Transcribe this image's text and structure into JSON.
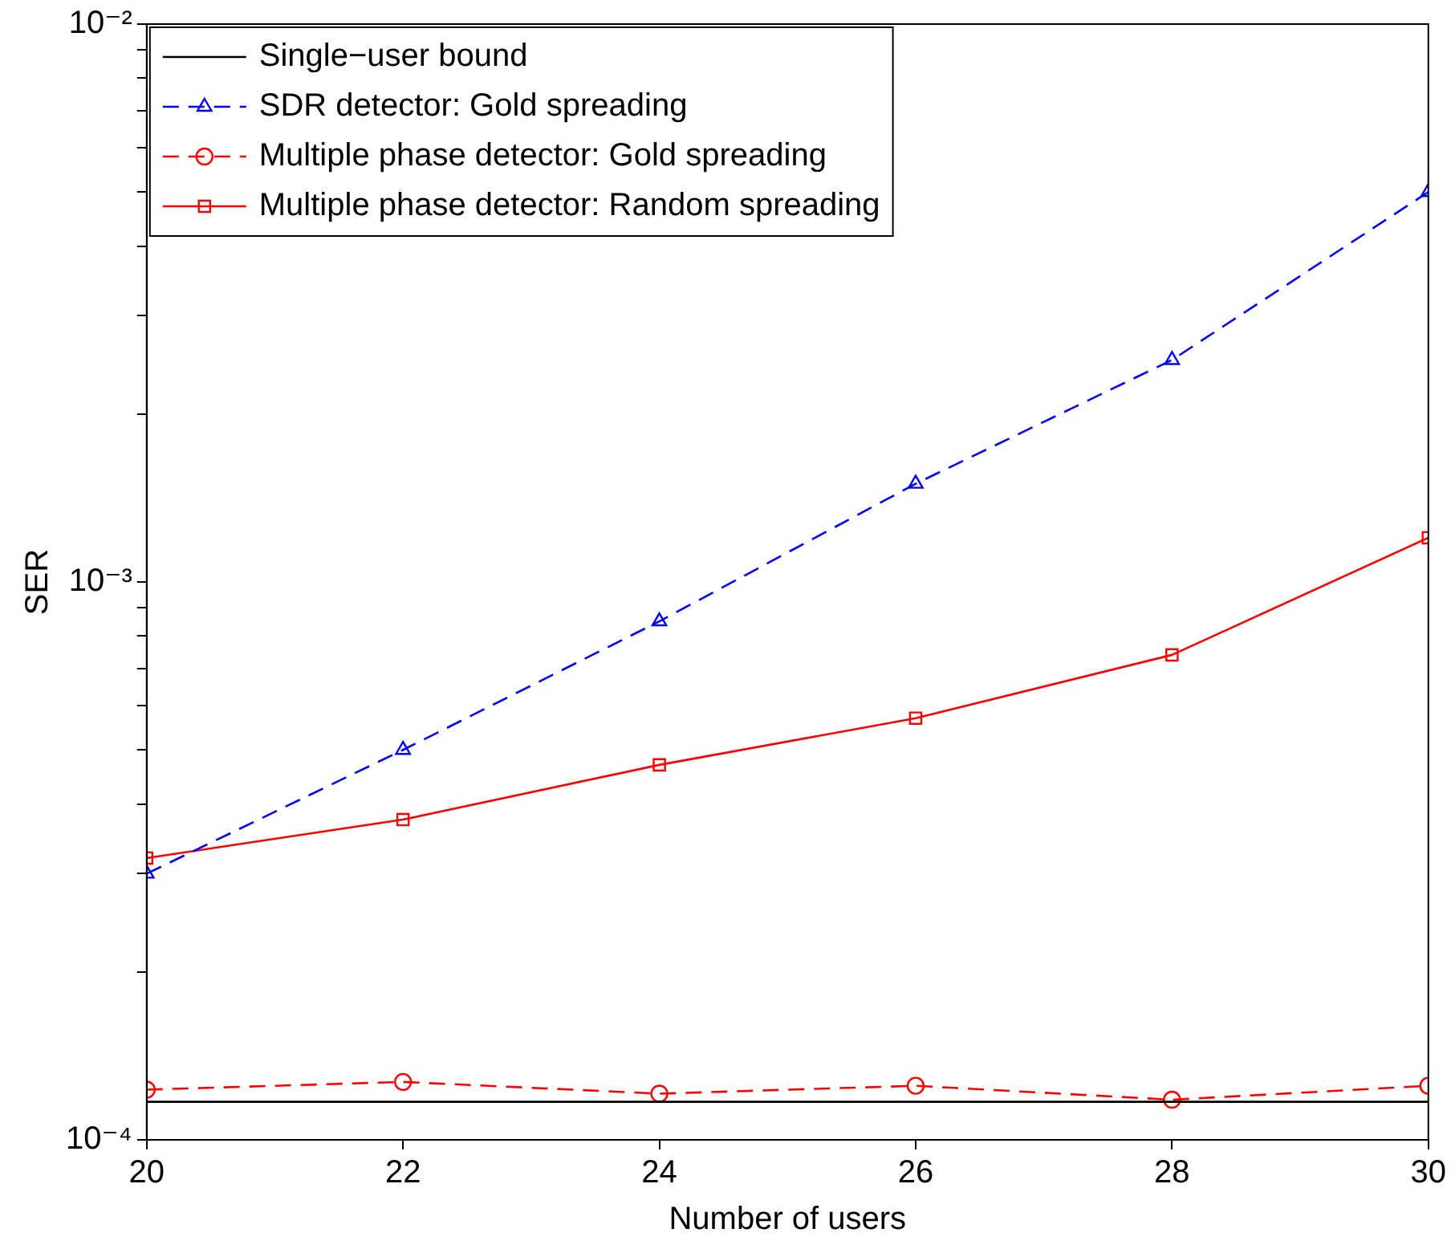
{
  "chart_data": {
    "type": "line",
    "xlabel": "Number of users",
    "ylabel": "SER",
    "x": [
      20,
      22,
      24,
      26,
      28,
      30
    ],
    "xlim": [
      20,
      30
    ],
    "xticks": [
      20,
      22,
      24,
      26,
      28,
      30
    ],
    "ylim": [
      0.0001,
      0.01
    ],
    "log": "y",
    "yticks": [
      {
        "value": 0.0001,
        "label": "10⁻⁴"
      },
      {
        "value": 0.0002,
        "label": null
      },
      {
        "value": 0.0003,
        "label": null
      },
      {
        "value": 0.0004,
        "label": null
      },
      {
        "value": 0.0005,
        "label": null
      },
      {
        "value": 0.0006,
        "label": null
      },
      {
        "value": 0.0007,
        "label": null
      },
      {
        "value": 0.0008,
        "label": null
      },
      {
        "value": 0.0009,
        "label": null
      },
      {
        "value": 0.001,
        "label": "10⁻³"
      },
      {
        "value": 0.002,
        "label": null
      },
      {
        "value": 0.003,
        "label": null
      },
      {
        "value": 0.004,
        "label": null
      },
      {
        "value": 0.005,
        "label": null
      },
      {
        "value": 0.006,
        "label": null
      },
      {
        "value": 0.007,
        "label": null
      },
      {
        "value": 0.008,
        "label": null
      },
      {
        "value": 0.009,
        "label": null
      },
      {
        "value": 0.01,
        "label": "10⁻²"
      }
    ],
    "grid": false,
    "legend": "top left",
    "series": [
      {
        "name": "Single−user bound",
        "color": "#000000",
        "marker": "none",
        "line_style": "solid",
        "values": [
          0.000117,
          0.000117,
          0.000117,
          0.000117,
          0.000117,
          0.000117
        ]
      },
      {
        "name": "SDR detector: Gold spreading",
        "color": "#0000ff",
        "marker": "triangle",
        "line_style": "dashed",
        "values": [
          0.0003,
          0.0005,
          0.00085,
          0.0015,
          0.0025,
          0.005
        ]
      },
      {
        "name": "Multiple phase detector: Gold spreading",
        "color": "#ff0000",
        "marker": "circle",
        "line_style": "dashed",
        "values": [
          0.000123,
          0.000127,
          0.000121,
          0.000125,
          0.000118,
          0.000125
        ]
      },
      {
        "name": "Multiple phase detector: Random spreading",
        "color": "#ff0000",
        "marker": "square",
        "line_style": "solid",
        "values": [
          0.00032,
          0.000375,
          0.00047,
          0.00057,
          0.00074,
          0.0012
        ]
      }
    ]
  }
}
